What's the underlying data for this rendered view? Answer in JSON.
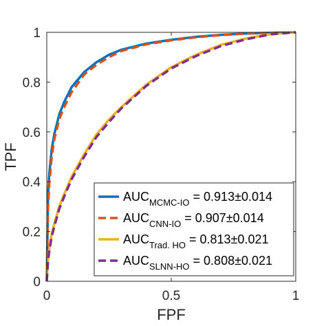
{
  "chart_data": {
    "type": "line",
    "title": "",
    "xlabel": "FPF",
    "ylabel": "TPF",
    "xlim": [
      0,
      1
    ],
    "ylim": [
      0,
      1
    ],
    "x_ticks": [
      {
        "value": 0,
        "label": "0"
      },
      {
        "value": 0.5,
        "label": "0.5"
      },
      {
        "value": 1,
        "label": "1"
      }
    ],
    "y_ticks": [
      {
        "value": 0,
        "label": "0"
      },
      {
        "value": 0.2,
        "label": "0.2"
      },
      {
        "value": 0.4,
        "label": "0.4"
      },
      {
        "value": 0.6,
        "label": "0.6"
      },
      {
        "value": 0.8,
        "label": "0.8"
      },
      {
        "value": 1,
        "label": "1"
      }
    ],
    "grid": false,
    "legend_position": "bottom-right",
    "series": [
      {
        "name": "AUC",
        "subscript": "MCMC-IO",
        "value_text": " = 0.913±0.014",
        "color": "#0072BD",
        "style": "solid",
        "x": [
          0,
          0.005,
          0.01,
          0.02,
          0.03,
          0.05,
          0.07,
          0.1,
          0.15,
          0.2,
          0.25,
          0.3,
          0.4,
          0.5,
          0.6,
          0.7,
          0.8,
          0.9,
          1.0
        ],
        "y": [
          0,
          0.34,
          0.43,
          0.53,
          0.59,
          0.67,
          0.72,
          0.78,
          0.84,
          0.88,
          0.91,
          0.93,
          0.955,
          0.97,
          0.982,
          0.99,
          0.995,
          0.998,
          1.0
        ]
      },
      {
        "name": "AUC",
        "subscript": "CNN-IO",
        "value_text": " = 0.907±0.014",
        "color": "#D95319",
        "style": "dashed",
        "x": [
          0,
          0.005,
          0.01,
          0.02,
          0.03,
          0.05,
          0.07,
          0.1,
          0.15,
          0.2,
          0.25,
          0.3,
          0.4,
          0.5,
          0.6,
          0.7,
          0.8,
          0.9,
          1.0
        ],
        "y": [
          0,
          0.29,
          0.39,
          0.5,
          0.57,
          0.65,
          0.7,
          0.76,
          0.83,
          0.87,
          0.9,
          0.925,
          0.952,
          0.968,
          0.98,
          0.989,
          0.995,
          0.998,
          1.0
        ]
      },
      {
        "name": "AUC",
        "subscript": "Trad. HO",
        "value_text": " = 0.813±0.021",
        "color": "#EDB120",
        "style": "solid",
        "x": [
          0,
          0.005,
          0.01,
          0.02,
          0.03,
          0.05,
          0.07,
          0.1,
          0.15,
          0.2,
          0.25,
          0.3,
          0.4,
          0.5,
          0.6,
          0.7,
          0.8,
          0.9,
          1.0
        ],
        "y": [
          0,
          0.09,
          0.13,
          0.19,
          0.23,
          0.3,
          0.35,
          0.42,
          0.51,
          0.59,
          0.65,
          0.7,
          0.79,
          0.86,
          0.91,
          0.95,
          0.975,
          0.993,
          1.0
        ]
      },
      {
        "name": "AUC",
        "subscript": "SLNN-HO",
        "value_text": " = 0.808±0.021",
        "color": "#7E2F8E",
        "style": "dashed",
        "x": [
          0,
          0.005,
          0.01,
          0.02,
          0.03,
          0.05,
          0.07,
          0.1,
          0.15,
          0.2,
          0.25,
          0.3,
          0.4,
          0.5,
          0.6,
          0.7,
          0.8,
          0.9,
          1.0
        ],
        "y": [
          0,
          0.08,
          0.12,
          0.18,
          0.22,
          0.29,
          0.34,
          0.41,
          0.5,
          0.58,
          0.64,
          0.695,
          0.785,
          0.855,
          0.905,
          0.945,
          0.972,
          0.992,
          1.0
        ]
      }
    ]
  }
}
